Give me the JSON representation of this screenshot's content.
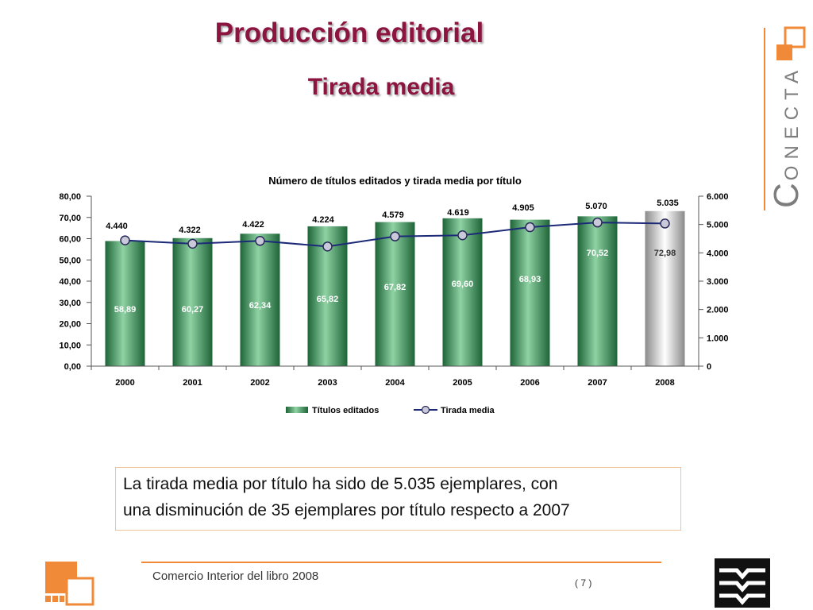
{
  "slide": {
    "title": "Producción editorial",
    "subtitle": "Tirada media"
  },
  "logo": {
    "wordmark": "CONECTA"
  },
  "colors": {
    "title": "#8c1540",
    "accent_orange": "#f08a38",
    "bar_green": "#3a9a5c",
    "bar_highlight": "#c8c8c8",
    "line": "#1c2a78",
    "marker": "#c9c9d9",
    "marker_edge": "#2a2a5a"
  },
  "chart_data": {
    "type": "bar",
    "title": "Número de títulos editados y tirada media por título",
    "categories": [
      "2000",
      "2001",
      "2002",
      "2003",
      "2004",
      "2005",
      "2006",
      "2007",
      "2008"
    ],
    "series": [
      {
        "name": "Títulos editados",
        "type": "bar",
        "axis": "left",
        "values": [
          58.89,
          60.27,
          62.34,
          65.82,
          67.82,
          69.6,
          68.93,
          70.52,
          72.98
        ],
        "labels": [
          "58,89",
          "60,27",
          "62,34",
          "65,82",
          "67,82",
          "69,60",
          "68,93",
          "70,52",
          "72,98"
        ]
      },
      {
        "name": "Tirada media",
        "type": "line",
        "axis": "right",
        "values": [
          4440,
          4322,
          4422,
          4224,
          4579,
          4619,
          4905,
          5070,
          5035
        ],
        "labels": [
          "4.440",
          "4.322",
          "4.422",
          "4.224",
          "4.579",
          "4.619",
          "4.905",
          "5.070",
          "5.035"
        ]
      }
    ],
    "y_left": {
      "range": [
        0,
        80
      ],
      "ticks": [
        "0,00",
        "10,00",
        "20,00",
        "30,00",
        "40,00",
        "50,00",
        "60,00",
        "70,00",
        "80,00"
      ]
    },
    "y_right": {
      "range": [
        0,
        6000
      ],
      "ticks": [
        "0",
        "1.000",
        "2.000",
        "3.000",
        "4.000",
        "5.000",
        "6.000"
      ]
    },
    "xlabel": "",
    "ylabel": "",
    "grid": false,
    "legend": "bottom",
    "highlight_category": "2008"
  },
  "text_box": {
    "lines": [
      "La tirada media por título ha sido de 5.035 ejemplares, con",
      "una disminución de 35 ejemplares por título respecto a 2007"
    ]
  },
  "footer": {
    "text": "Comercio Interior del libro 2008",
    "page": "( 7 )"
  }
}
